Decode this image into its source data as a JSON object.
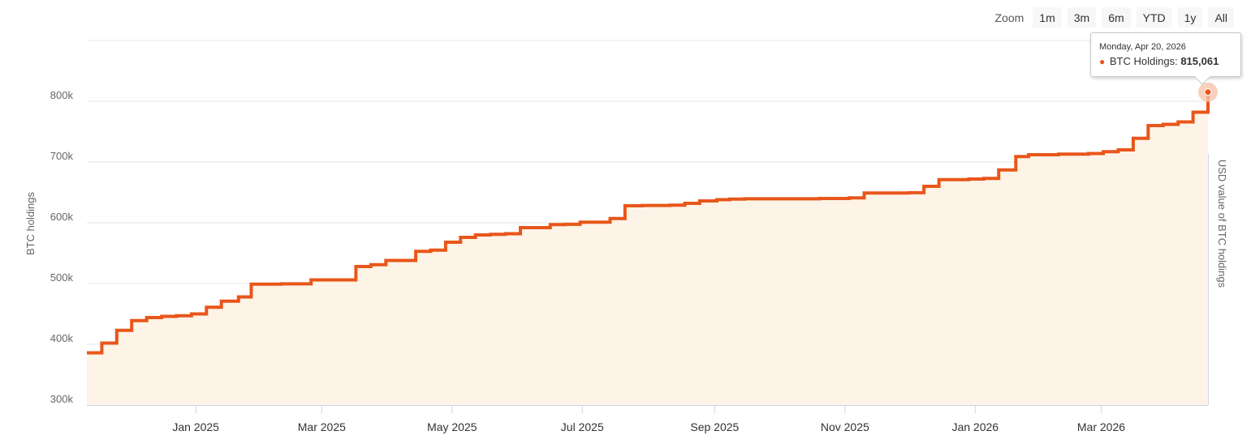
{
  "zoom": {
    "label": "Zoom",
    "buttons": [
      "1m",
      "3m",
      "6m",
      "YTD",
      "1y",
      "All"
    ]
  },
  "tooltip": {
    "date": "Monday, Apr 20, 2026",
    "series_label": "BTC Holdings:",
    "value": "815,061"
  },
  "colors": {
    "line": "#e8561a",
    "area": "#fdf3e6",
    "grid": "#e6e6e6",
    "axis": "#ccd6eb",
    "marker_halo": "#f5c6ad"
  },
  "chart_data": {
    "type": "area",
    "title": "",
    "ylabel": "BTC holdings",
    "ylabel_right": "USD value of BTC holdings",
    "ylim": [
      300000,
      900000
    ],
    "y_ticks": [
      300000,
      400000,
      500000,
      600000,
      700000,
      800000
    ],
    "y_tick_labels": [
      "300k",
      "400k",
      "500k",
      "600k",
      "700k",
      "800k"
    ],
    "xlim": [
      "2024-11-11",
      "2026-04-20"
    ],
    "x_ticks": [
      "2025-01-01",
      "2025-03-01",
      "2025-05-01",
      "2025-07-01",
      "2025-09-01",
      "2025-11-01",
      "2026-01-01",
      "2026-03-01"
    ],
    "x_tick_labels": [
      "Jan 2025",
      "Mar 2025",
      "May 2025",
      "Jul 2025",
      "Sep 2025",
      "Nov 2025",
      "Jan 2026",
      "Mar 2026"
    ],
    "step": true,
    "grid": true,
    "series": [
      {
        "name": "BTC Holdings",
        "x": [
          "2024-11-11",
          "2024-11-18",
          "2024-11-25",
          "2024-12-02",
          "2024-12-09",
          "2024-12-16",
          "2024-12-23",
          "2024-12-30",
          "2025-01-06",
          "2025-01-13",
          "2025-01-21",
          "2025-01-27",
          "2025-02-10",
          "2025-02-24",
          "2025-03-17",
          "2025-03-24",
          "2025-03-31",
          "2025-04-14",
          "2025-04-21",
          "2025-04-28",
          "2025-05-05",
          "2025-05-12",
          "2025-05-19",
          "2025-05-26",
          "2025-06-02",
          "2025-06-16",
          "2025-06-23",
          "2025-06-30",
          "2025-07-14",
          "2025-07-21",
          "2025-07-29",
          "2025-08-11",
          "2025-08-18",
          "2025-08-25",
          "2025-09-02",
          "2025-09-08",
          "2025-09-15",
          "2025-10-20",
          "2025-11-03",
          "2025-11-10",
          "2025-12-01",
          "2025-12-08",
          "2025-12-15",
          "2025-12-29",
          "2026-01-05",
          "2026-01-12",
          "2026-01-20",
          "2026-01-26",
          "2026-02-09",
          "2026-02-23",
          "2026-03-02",
          "2026-03-09",
          "2026-03-16",
          "2026-03-23",
          "2026-03-30",
          "2026-04-06",
          "2026-04-13",
          "2026-04-20"
        ],
        "values": [
          386000,
          402000,
          423000,
          439000,
          444000,
          446000,
          447000,
          450000,
          461000,
          471000,
          478000,
          499000,
          499500,
          506000,
          528000,
          531000,
          538000,
          553000,
          555000,
          568000,
          576000,
          580000,
          581000,
          582000,
          592000,
          597000,
          597500,
          601000,
          607000,
          628000,
          628500,
          629000,
          632000,
          636000,
          638000,
          639000,
          639500,
          640000,
          641000,
          649000,
          649500,
          660000,
          671000,
          672000,
          673000,
          687000,
          709000,
          712000,
          713000,
          714000,
          717000,
          720000,
          739000,
          760000,
          762000,
          766000,
          782000,
          815061
        ]
      }
    ]
  }
}
